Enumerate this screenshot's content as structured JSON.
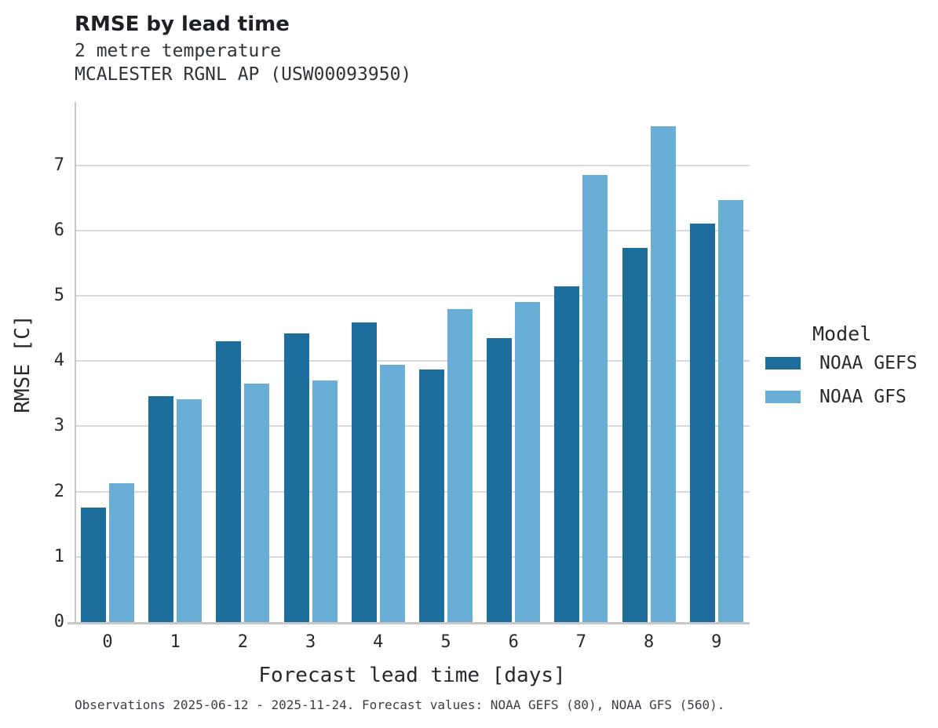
{
  "chart_data": {
    "type": "bar",
    "title": "RMSE by lead time",
    "subtitle": [
      "2 metre temperature",
      "MCALESTER RGNL AP (USW00093950)"
    ],
    "xlabel": "Forecast lead time [days]",
    "ylabel": "RMSE [C]",
    "categories": [
      "0",
      "1",
      "2",
      "3",
      "4",
      "5",
      "6",
      "7",
      "8",
      "9"
    ],
    "series": [
      {
        "name": "NOAA GEFS",
        "color": "#1d6e9c",
        "values": [
          1.76,
          3.46,
          4.3,
          4.42,
          4.59,
          3.87,
          4.35,
          5.14,
          5.74,
          6.11
        ]
      },
      {
        "name": "NOAA GFS",
        "color": "#69aed6",
        "values": [
          2.13,
          3.41,
          3.65,
          3.7,
          3.94,
          4.8,
          4.9,
          6.85,
          7.6,
          6.47
        ]
      }
    ],
    "ylim": [
      0,
      7.97
    ],
    "yticks": [
      0,
      1,
      2,
      3,
      4,
      5,
      6,
      7
    ],
    "grid": "horizontal",
    "legend_title": "Model",
    "legend_position": "right",
    "footnote": "Observations 2025-06-12 - 2025-11-24. Forecast values: NOAA GEFS (80), NOAA GFS (560)."
  },
  "colors": {
    "gridline": "#d9d9d9",
    "spine": "#c7c7c7",
    "text": "#262a2e"
  }
}
